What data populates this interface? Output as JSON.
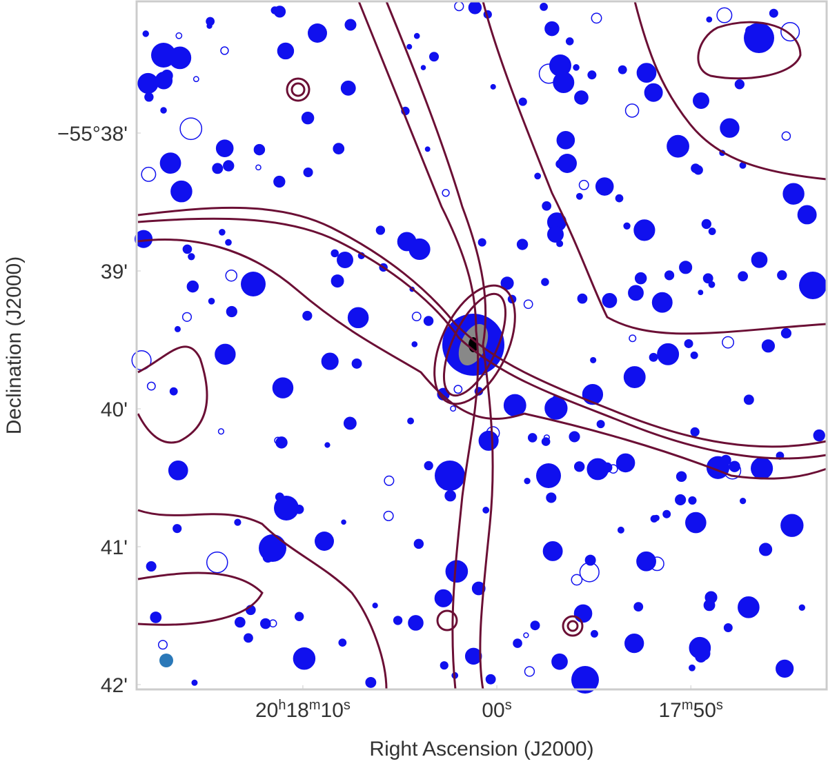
{
  "chart_data": {
    "type": "image",
    "xlabel": "Right Ascension (J2000)",
    "ylabel": "Declination (J2000)",
    "xlim": [
      73098.57,
      73063.0
    ],
    "ylim": [
      -3342.035,
      -3337.045
    ],
    "xticks": [
      {
        "value": 73090,
        "label": "20h18m10s"
      },
      {
        "value": 73080,
        "label": "00s"
      },
      {
        "value": 73070,
        "label": "17m50s"
      }
    ],
    "yticks": [
      {
        "value": -3338,
        "label": "−55°38'"
      },
      {
        "value": -3339,
        "label": "39'"
      },
      {
        "value": -3340,
        "label": "40'"
      },
      {
        "value": -3341,
        "label": "41'"
      },
      {
        "value": -3342,
        "label": "42'"
      }
    ]
  }
}
